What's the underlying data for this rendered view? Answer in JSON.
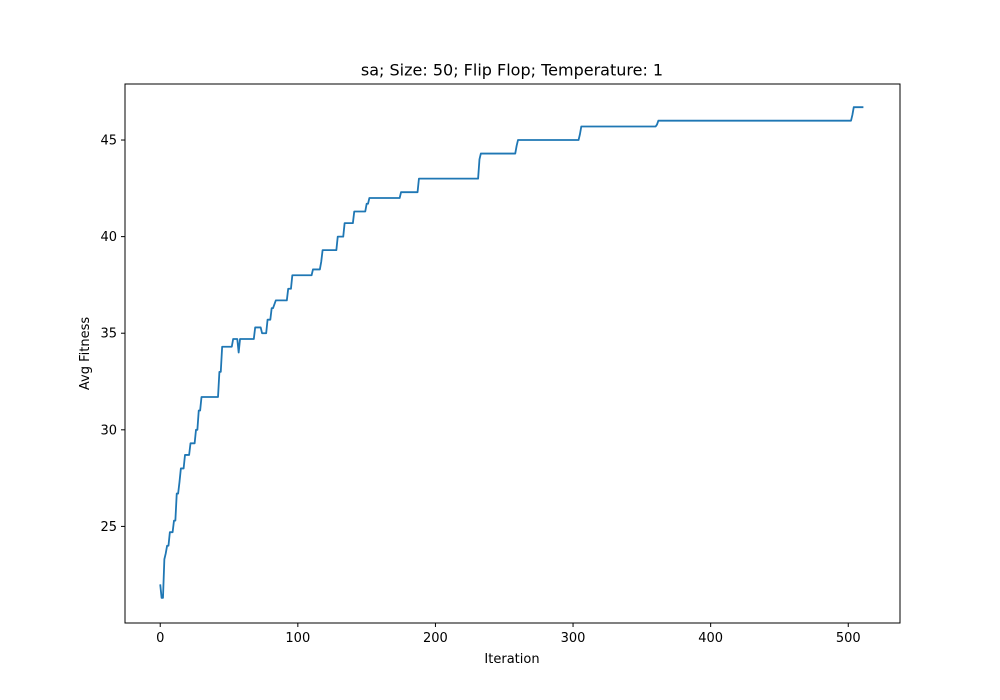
{
  "chart_data": {
    "type": "line",
    "title": "sa; Size: 50; Flip Flop; Temperature: 1",
    "xlabel": "Iteration",
    "ylabel": "Avg Fitness",
    "xlim": [
      -25.6,
      537.6
    ],
    "ylim": [
      20.0,
      47.9
    ],
    "xticks": [
      0,
      100,
      200,
      300,
      400,
      500
    ],
    "yticks": [
      25,
      30,
      35,
      40,
      45
    ],
    "grid": false,
    "legend": "none",
    "series": [
      {
        "color": "#1f77b4",
        "x": [
          0,
          1,
          2,
          3,
          4,
          5,
          6,
          7,
          8,
          9,
          10,
          11,
          12,
          13,
          14,
          15,
          16,
          17,
          18,
          19,
          20,
          21,
          22,
          23,
          24,
          25,
          26,
          27,
          28,
          29,
          30,
          31,
          32,
          42,
          43,
          44,
          45,
          52,
          53,
          56,
          57,
          58,
          68,
          69,
          73,
          74,
          77,
          78,
          79,
          80,
          81,
          82,
          84,
          92,
          93,
          95,
          96,
          110,
          111,
          116,
          117,
          118,
          128,
          129,
          133,
          134,
          140,
          141,
          149,
          150,
          151,
          152,
          174,
          175,
          187,
          188,
          231,
          232,
          233,
          258,
          259,
          260,
          304,
          305,
          306,
          360,
          361,
          362,
          502,
          503,
          504,
          511
        ],
        "values": [
          22.0,
          21.3,
          21.3,
          23.3,
          23.6,
          24.0,
          24.0,
          24.7,
          24.7,
          24.7,
          25.3,
          25.3,
          26.7,
          26.7,
          27.3,
          28.0,
          28.0,
          28.0,
          28.7,
          28.7,
          28.7,
          28.7,
          29.3,
          29.3,
          29.3,
          29.3,
          30.0,
          30.0,
          31.0,
          31.0,
          31.7,
          31.7,
          31.7,
          31.7,
          33.0,
          33.0,
          34.3,
          34.3,
          34.7,
          34.7,
          34.0,
          34.7,
          34.7,
          35.3,
          35.3,
          35.0,
          35.0,
          35.7,
          35.7,
          35.7,
          36.3,
          36.3,
          36.7,
          36.7,
          37.3,
          37.3,
          38.0,
          38.0,
          38.3,
          38.3,
          38.7,
          39.3,
          39.3,
          40.0,
          40.0,
          40.7,
          40.7,
          41.3,
          41.3,
          41.7,
          41.7,
          42.0,
          42.0,
          42.3,
          42.3,
          43.0,
          43.0,
          44.0,
          44.3,
          44.3,
          44.7,
          45.0,
          45.0,
          45.3,
          45.7,
          45.7,
          45.8,
          46.0,
          46.0,
          46.3,
          46.7,
          46.7
        ]
      }
    ]
  }
}
